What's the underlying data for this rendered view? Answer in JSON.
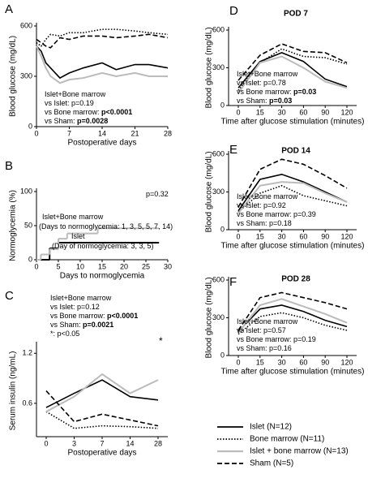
{
  "chart_data": [
    {
      "type": "line",
      "panel_label": "A",
      "x_label": "Postoperative days",
      "y_label": "Blood glucose (mg/dL)",
      "x": [
        0,
        1,
        2,
        3,
        5,
        7,
        10,
        14,
        17,
        21,
        24,
        28
      ],
      "xlim": [
        0,
        28
      ],
      "xticks": [
        0,
        7,
        14,
        21,
        28
      ],
      "ylim": [
        0,
        600
      ],
      "yticks": [
        0,
        300,
        600
      ],
      "series": [
        {
          "name": "Islet (N=12)",
          "color": "#000000",
          "style": "solid",
          "values": [
            480,
            450,
            380,
            350,
            290,
            320,
            350,
            380,
            340,
            370,
            370,
            350
          ]
        },
        {
          "name": "Bone marrow (N=11)",
          "color": "#000000",
          "style": "dotted",
          "values": [
            500,
            480,
            520,
            550,
            540,
            560,
            560,
            580,
            580,
            570,
            560,
            550
          ]
        },
        {
          "name": "Islet + bone marrow (N=13)",
          "color": "#bbbbbb",
          "style": "solid",
          "values": [
            480,
            420,
            350,
            300,
            260,
            280,
            290,
            320,
            300,
            320,
            300,
            300
          ]
        },
        {
          "name": "Sham (N=5)",
          "color": "#000000",
          "style": "dashed",
          "values": [
            520,
            500,
            480,
            470,
            530,
            520,
            540,
            540,
            530,
            540,
            550,
            530
          ]
        }
      ],
      "annotation": [
        {
          "text": "Islet+Bone marrow"
        },
        {
          "text": "vs Islet: p=0.19"
        },
        {
          "text": "vs Bone marrow: ",
          "bold": "p<0.0001"
        },
        {
          "text": "vs Sham: ",
          "bold": "p=0.0028"
        }
      ]
    },
    {
      "type": "step",
      "panel_label": "B",
      "x_label": "Days to normoglycemia",
      "y_label": "Normoglycemia (%)",
      "xlim": [
        0,
        30
      ],
      "xticks": [
        0,
        5,
        10,
        15,
        20,
        25,
        30
      ],
      "ylim": [
        0,
        100
      ],
      "yticks": [
        0,
        50,
        100
      ],
      "series": [
        {
          "color": "#000000",
          "style": "solid",
          "x": [
            0,
            3,
            5,
            28
          ],
          "values": [
            0,
            16.7,
            25,
            25
          ]
        },
        {
          "color": "#bbbbbb",
          "style": "solid",
          "x": [
            0,
            1,
            3,
            5,
            7,
            14,
            28
          ],
          "values": [
            0,
            7.7,
            15.4,
            30.8,
            38.5,
            46.2,
            46.2
          ]
        }
      ],
      "annotation": [
        {
          "text": "p=0.32"
        },
        {
          "text": "Islet+Bone marrow"
        },
        {
          "text": "(Days to normoglycemia: 1, 3, 5, 5, 7, 14)"
        },
        {
          "text": "Islet"
        },
        {
          "text": "(Day of normoglycemia: 3, 3, 5)"
        }
      ]
    },
    {
      "type": "line",
      "panel_label": "C",
      "x_label": "Postoperative days",
      "y_label": "Serum insulin (ng/mL)",
      "categories": [
        "0",
        "3",
        "7",
        "14",
        "28"
      ],
      "ylim": [
        0.2,
        1.3
      ],
      "yticks": [
        0.6,
        1.2
      ],
      "series": [
        {
          "color": "#000000",
          "style": "solid",
          "values": [
            0.55,
            0.72,
            0.88,
            0.68,
            0.64
          ]
        },
        {
          "color": "#000000",
          "style": "dotted",
          "values": [
            0.5,
            0.3,
            0.33,
            0.32,
            0.3
          ]
        },
        {
          "color": "#bbbbbb",
          "style": "solid",
          "values": [
            0.5,
            0.68,
            0.95,
            0.72,
            0.88
          ]
        },
        {
          "color": "#000000",
          "style": "dashed",
          "values": [
            0.75,
            0.38,
            0.47,
            0.4,
            0.33
          ]
        }
      ],
      "annotation": [
        {
          "text": "Islet+Bone marrow"
        },
        {
          "text": "vs Islet: p=0.12"
        },
        {
          "text": "vs Bone marrow: ",
          "bold": "p<0.0001"
        },
        {
          "text": "vs Sham: ",
          "bold": "p=0.0021"
        },
        {
          "text": "*: p<0.05"
        },
        {
          "text": "*"
        }
      ]
    },
    {
      "type": "line",
      "panel_label": "D",
      "title": "POD 7",
      "x_label": "Time after glucose stimulation (minutes)",
      "y_label": "Blood glucose (mg/dL)",
      "categories": [
        "0",
        "15",
        "30",
        "60",
        "90",
        "120"
      ],
      "ylim": [
        0,
        600
      ],
      "yticks": [
        0,
        300,
        600
      ],
      "series": [
        {
          "color": "#000000",
          "style": "solid",
          "values": [
            140,
            350,
            420,
            350,
            210,
            150
          ]
        },
        {
          "color": "#000000",
          "style": "dotted",
          "values": [
            120,
            340,
            450,
            390,
            380,
            330
          ]
        },
        {
          "color": "#bbbbbb",
          "style": "solid",
          "values": [
            100,
            340,
            390,
            300,
            190,
            140
          ]
        },
        {
          "color": "#000000",
          "style": "dashed",
          "values": [
            200,
            400,
            490,
            430,
            420,
            340
          ]
        }
      ],
      "annotation": [
        {
          "text": "Islet+Bone marrow"
        },
        {
          "text": "vs Islet: p=0.78"
        },
        {
          "text": "vs Bone marrow: ",
          "bold": "p=0.03"
        },
        {
          "text": "vs Sham: ",
          "bold": "p=0.03"
        }
      ]
    },
    {
      "type": "line",
      "panel_label": "E",
      "title": "POD 14",
      "x_label": "Time after glucose stimulation (minutes)",
      "y_label": "Blood glucose (mg/dL)",
      "categories": [
        "0",
        "15",
        "30",
        "60",
        "90",
        "120"
      ],
      "ylim": [
        0,
        600
      ],
      "yticks": [
        0,
        300,
        600
      ],
      "series": [
        {
          "color": "#000000",
          "style": "solid",
          "values": [
            150,
            400,
            440,
            380,
            300,
            220
          ]
        },
        {
          "color": "#000000",
          "style": "dotted",
          "values": [
            140,
            290,
            350,
            270,
            230,
            190
          ]
        },
        {
          "color": "#bbbbbb",
          "style": "solid",
          "values": [
            130,
            350,
            380,
            370,
            290,
            220
          ]
        },
        {
          "color": "#000000",
          "style": "dashed",
          "values": [
            180,
            480,
            560,
            520,
            430,
            330
          ]
        }
      ],
      "annotation": [
        {
          "text": "Islet+Bone marrow"
        },
        {
          "text": "vs Islet: p=0.92"
        },
        {
          "text": "vs Bone marrow: p=0.39"
        },
        {
          "text": "vs Sham: p=0.18"
        }
      ]
    },
    {
      "type": "line",
      "panel_label": "F",
      "title": "POD 28",
      "x_label": "Time after glucose stimulation (minutes)",
      "y_label": "Blood glucose (mg/dL)",
      "categories": [
        "0",
        "15",
        "30",
        "60",
        "90",
        "120"
      ],
      "ylim": [
        0,
        600
      ],
      "yticks": [
        0,
        300,
        600
      ],
      "series": [
        {
          "color": "#000000",
          "style": "solid",
          "values": [
            190,
            370,
            400,
            350,
            280,
            230
          ]
        },
        {
          "color": "#000000",
          "style": "dotted",
          "values": [
            170,
            310,
            340,
            300,
            240,
            200
          ]
        },
        {
          "color": "#bbbbbb",
          "style": "solid",
          "values": [
            180,
            400,
            450,
            390,
            330,
            260
          ]
        },
        {
          "color": "#000000",
          "style": "dashed",
          "values": [
            200,
            460,
            500,
            460,
            420,
            370
          ]
        }
      ],
      "annotation": [
        {
          "text": "Islet+Bone marrow"
        },
        {
          "text": "vs Islet: p=0.57"
        },
        {
          "text": "vs Bone marrow: p=0.19"
        },
        {
          "text": "vs Sham: p=0.16"
        }
      ]
    }
  ]
}
